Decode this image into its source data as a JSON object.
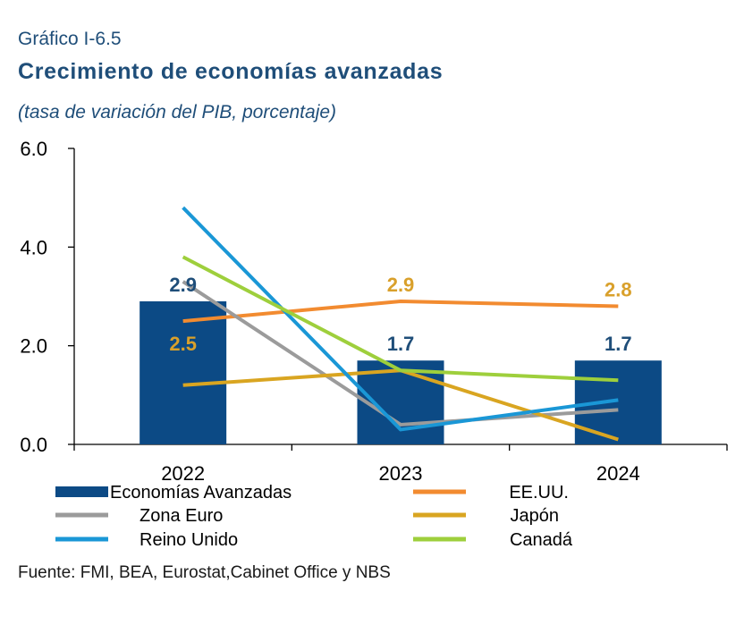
{
  "header": {
    "eyebrow": "Gráfico I-6.5",
    "title": "Crecimiento de economías avanzadas",
    "subtitle": "(tasa de variación del PIB, porcentaje)"
  },
  "footer": {
    "source": "Fuente: FMI, BEA, Eurostat,Cabinet Office y NBS"
  },
  "chart_data": {
    "type": "bar",
    "categories": [
      "2022",
      "2023",
      "2024"
    ],
    "ylim": [
      0,
      6
    ],
    "yticks": [
      "0.0",
      "2.0",
      "4.0",
      "6.0"
    ],
    "grid": false,
    "legend_position": "bottom",
    "bar_series": {
      "name": "Economías Avanzadas",
      "values": [
        2.9,
        1.7,
        1.7
      ],
      "labels": [
        "2.9",
        "1.7",
        "1.7"
      ],
      "color": "#0c4a85",
      "label_color": "#1f4e79"
    },
    "line_series": [
      {
        "name": "EE.UU.",
        "values": [
          2.5,
          2.9,
          2.8
        ],
        "color": "#f28b30",
        "labels": [
          "2.5",
          "2.9",
          "2.8"
        ],
        "label_color": "#d9a02b"
      },
      {
        "name": "Zona Euro",
        "values": [
          3.3,
          0.4,
          0.7
        ],
        "color": "#9b9b9b"
      },
      {
        "name": "Japón",
        "values": [
          1.2,
          1.5,
          0.1
        ],
        "color": "#d9a521"
      },
      {
        "name": "Reino Unido",
        "values": [
          4.8,
          0.3,
          0.9
        ],
        "color": "#1a97d6"
      },
      {
        "name": "Canadá",
        "values": [
          3.8,
          1.5,
          1.3
        ],
        "color": "#9ecf3c"
      }
    ],
    "legend_order": [
      "Economías Avanzadas",
      "EE.UU.",
      "Zona Euro",
      "Japón",
      "Reino Unido",
      "Canadá"
    ]
  }
}
